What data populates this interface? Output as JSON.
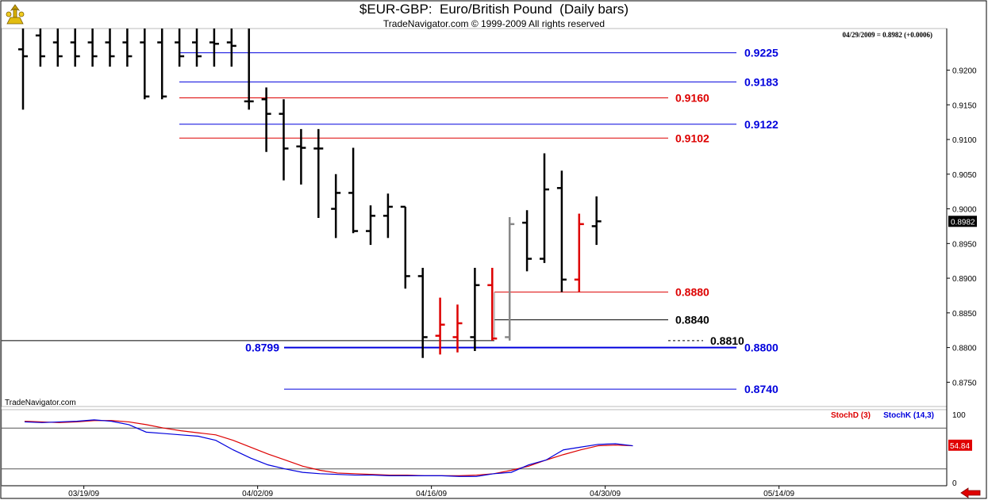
{
  "header": {
    "title": "$EUR-GBP:  Euro/British Pound  (Daily bars)",
    "subtitle": "TradeNavigator.com © 1999-2009 All rights reserved",
    "quote": "04/29/2009 = 0.8982 (+0.0006)",
    "watermark": "TradeNavigator.com"
  },
  "icons": {
    "logo": "trade-navigator-logo-icon",
    "nav": "left-arrow-icon"
  },
  "colors": {
    "blue": "#0000dd",
    "red": "#dd0000",
    "black": "#000000",
    "gray": "#888888"
  },
  "chart_data": [
    {
      "type": "ohlc",
      "title": "$EUR-GBP:  Euro/British Pound  (Daily bars)",
      "ylim": [
        0.8715,
        0.926
      ],
      "y_ticks": [
        "0.9200",
        "0.9150",
        "0.9100",
        "0.9050",
        "0.9000",
        "0.8950",
        "0.8900",
        "0.8850",
        "0.8800",
        "0.8750"
      ],
      "x_labels": [
        {
          "label": "03/19/09",
          "bar": 3.5
        },
        {
          "label": "04/02/09",
          "bar": 13.5
        },
        {
          "label": "04/16/09",
          "bar": 23.5
        },
        {
          "label": "04/30/09",
          "bar": 33.5
        },
        {
          "label": "05/14/09",
          "bar": 43.5
        }
      ],
      "last_price": "0.8982",
      "bars": [
        {
          "o": 0.923,
          "h": 0.93,
          "l": 0.9143,
          "c": 0.922
        },
        {
          "o": 0.925,
          "h": 0.93,
          "l": 0.9205,
          "c": 0.922
        },
        {
          "o": 0.924,
          "h": 0.93,
          "l": 0.9205,
          "c": 0.922
        },
        {
          "o": 0.924,
          "h": 0.93,
          "l": 0.9205,
          "c": 0.922
        },
        {
          "o": 0.924,
          "h": 0.93,
          "l": 0.9205,
          "c": 0.922
        },
        {
          "o": 0.924,
          "h": 0.93,
          "l": 0.9205,
          "c": 0.922
        },
        {
          "o": 0.924,
          "h": 0.93,
          "l": 0.9205,
          "c": 0.922
        },
        {
          "o": 0.924,
          "h": 0.93,
          "l": 0.9158,
          "c": 0.9162
        },
        {
          "o": 0.924,
          "h": 0.93,
          "l": 0.9158,
          "c": 0.9162
        },
        {
          "o": 0.924,
          "h": 0.93,
          "l": 0.9205,
          "c": 0.922
        },
        {
          "o": 0.924,
          "h": 0.93,
          "l": 0.9205,
          "c": 0.922
        },
        {
          "o": 0.924,
          "h": 0.93,
          "l": 0.9205,
          "c": 0.9238
        },
        {
          "o": 0.924,
          "h": 0.93,
          "l": 0.9205,
          "c": 0.9235
        },
        {
          "o": 0.9155,
          "h": 0.93,
          "l": 0.9143,
          "c": 0.9155
        },
        {
          "o": 0.9158,
          "h": 0.9175,
          "l": 0.9082,
          "c": 0.9137
        },
        {
          "o": 0.9137,
          "h": 0.9158,
          "l": 0.9041,
          "c": 0.9087
        },
        {
          "o": 0.909,
          "h": 0.9115,
          "l": 0.9035,
          "c": 0.9088
        },
        {
          "o": 0.9087,
          "h": 0.9115,
          "l": 0.8987,
          "c": 0.9087
        },
        {
          "o": 0.9,
          "h": 0.905,
          "l": 0.8958,
          "c": 0.9023
        },
        {
          "o": 0.9023,
          "h": 0.9088,
          "l": 0.8965,
          "c": 0.8968
        },
        {
          "o": 0.8968,
          "h": 0.9005,
          "l": 0.8948,
          "c": 0.899
        },
        {
          "o": 0.899,
          "h": 0.9022,
          "l": 0.8958,
          "c": 0.9003
        },
        {
          "o": 0.9003,
          "h": 0.9003,
          "l": 0.8885,
          "c": 0.8903
        },
        {
          "o": 0.8903,
          "h": 0.8915,
          "l": 0.8785,
          "c": 0.8815
        },
        {
          "o": 0.8817,
          "h": 0.8872,
          "l": 0.879,
          "c": 0.8833,
          "color": "red"
        },
        {
          "o": 0.8815,
          "h": 0.8862,
          "l": 0.8793,
          "c": 0.8835,
          "color": "red"
        },
        {
          "o": 0.8815,
          "h": 0.8915,
          "l": 0.8795,
          "c": 0.889
        },
        {
          "o": 0.889,
          "h": 0.8915,
          "l": 0.881,
          "c": 0.8813,
          "color": "red"
        },
        {
          "o": 0.8815,
          "h": 0.8988,
          "l": 0.881,
          "c": 0.8978,
          "color": "gray"
        },
        {
          "o": 0.898,
          "h": 0.8998,
          "l": 0.891,
          "c": 0.8928
        },
        {
          "o": 0.8928,
          "h": 0.908,
          "l": 0.8922,
          "c": 0.9028
        },
        {
          "o": 0.903,
          "h": 0.9055,
          "l": 0.888,
          "c": 0.8898
        },
        {
          "o": 0.8898,
          "h": 0.8993,
          "l": 0.888,
          "c": 0.8978,
          "color": "red"
        },
        {
          "o": 0.8975,
          "h": 0.9018,
          "l": 0.8948,
          "c": 0.8982
        }
      ],
      "levels": [
        {
          "value": 0.9225,
          "label": "0.9225",
          "color": "blue"
        },
        {
          "value": 0.9183,
          "label": "0.9183",
          "color": "blue"
        },
        {
          "value": 0.916,
          "label": "0.9160",
          "color": "red"
        },
        {
          "value": 0.9122,
          "label": "0.9122",
          "color": "blue"
        },
        {
          "value": 0.9102,
          "label": "0.9102",
          "color": "red"
        },
        {
          "value": 0.888,
          "label": "0.8880",
          "color": "red"
        },
        {
          "value": 0.884,
          "label": "0.8840",
          "color": "black"
        },
        {
          "value": 0.881,
          "label": "0.8810",
          "color": "black",
          "style": "dashed"
        },
        {
          "value": 0.88,
          "label": "0.8800",
          "color": "blue",
          "left_label": "0.8799"
        },
        {
          "value": 0.874,
          "label": "0.8740",
          "color": "blue"
        }
      ]
    },
    {
      "type": "line",
      "title": "",
      "ylim": [
        0,
        100
      ],
      "y_ticks": [
        "100",
        "0"
      ],
      "reference_lines": [
        80,
        20
      ],
      "last_value": "54.84",
      "series": [
        {
          "name": "StochD (3)",
          "color": "red",
          "values": [
            90,
            89,
            88,
            89,
            91,
            91,
            89,
            85,
            80,
            76,
            73,
            70,
            62,
            52,
            42,
            33,
            24,
            18,
            14,
            13,
            12,
            11,
            11,
            10,
            10,
            10,
            11,
            13,
            18,
            24,
            33,
            41,
            48,
            54,
            55,
            54
          ]
        },
        {
          "name": "StochK (14,3)",
          "color": "blue",
          "values": [
            89,
            88,
            89,
            90,
            92,
            90,
            85,
            74,
            72,
            70,
            68,
            62,
            48,
            36,
            26,
            20,
            15,
            13,
            12,
            11,
            11,
            10,
            10,
            10,
            10,
            9,
            9,
            13,
            15,
            26,
            33,
            48,
            52,
            56,
            57,
            54
          ]
        }
      ]
    }
  ]
}
